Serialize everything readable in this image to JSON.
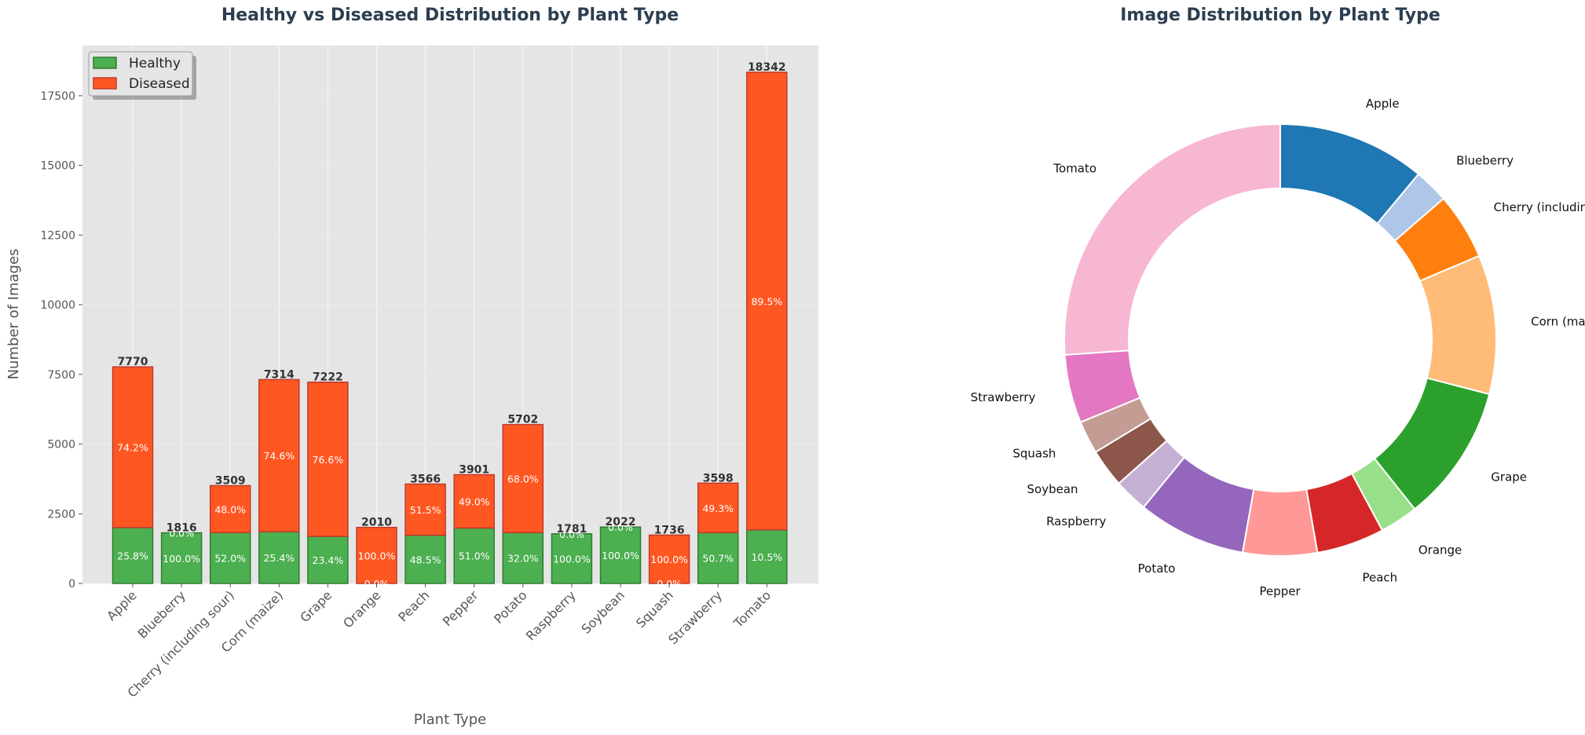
{
  "chart_data": [
    {
      "type": "bar",
      "stacked": true,
      "title": "Healthy vs Diseased Distribution by Plant Type",
      "xlabel": "Plant Type",
      "ylabel": "Number of Images",
      "ylim": [
        0,
        19300
      ],
      "yticks": [
        0,
        2500,
        5000,
        7500,
        10000,
        12500,
        15000,
        17500
      ],
      "grid": true,
      "legend_position": "upper-left",
      "categories": [
        "Apple",
        "Blueberry",
        "Cherry (including sour)",
        "Corn (maize)",
        "Grape",
        "Orange",
        "Peach",
        "Pepper",
        "Potato",
        "Raspberry",
        "Soybean",
        "Squash",
        "Strawberry",
        "Tomato"
      ],
      "series": [
        {
          "name": "Healthy",
          "color": "#4caf50",
          "values": [
            2005,
            1816,
            1825,
            1858,
            1690,
            0,
            1730,
            1989,
            1824,
            1781,
            2022,
            0,
            1824,
            1926
          ]
        },
        {
          "name": "Diseased",
          "color": "#ff5722",
          "values": [
            5765,
            0,
            1684,
            5456,
            5532,
            2010,
            1836,
            1912,
            3878,
            0,
            0,
            1736,
            1774,
            16416
          ]
        }
      ],
      "totals": [
        7770,
        1816,
        3509,
        7314,
        7222,
        2010,
        3566,
        3901,
        5702,
        1781,
        2022,
        1736,
        3598,
        18342
      ],
      "healthy_pct_labels": [
        "25.8%",
        "100.0%",
        "52.0%",
        "25.4%",
        "23.4%",
        "0.0%",
        "48.5%",
        "51.0%",
        "32.0%",
        "100.0%",
        "100.0%",
        "0.0%",
        "50.7%",
        "10.5%"
      ],
      "diseased_pct_labels": [
        "74.2%",
        "0.0%",
        "48.0%",
        "74.6%",
        "76.6%",
        "100.0%",
        "51.5%",
        "49.0%",
        "68.0%",
        "0.0%",
        "0.0%",
        "100.0%",
        "49.3%",
        "89.5%"
      ]
    },
    {
      "type": "pie",
      "donut": true,
      "title": "Image Distribution by Plant Type",
      "labels": [
        "Apple",
        "Blueberry",
        "Cherry (including sour)",
        "Corn (maize)",
        "Grape",
        "Orange",
        "Peach",
        "Pepper",
        "Potato",
        "Raspberry",
        "Soybean",
        "Squash",
        "Strawberry",
        "Tomato"
      ],
      "values": [
        7770,
        1816,
        3509,
        7314,
        7222,
        2010,
        3566,
        3901,
        5702,
        1781,
        2022,
        1736,
        3598,
        18342
      ],
      "colors": [
        "#1f77b4",
        "#aec7e8",
        "#ff7f0e",
        "#ffbb78",
        "#2ca02c",
        "#98df8a",
        "#d62728",
        "#ff9896",
        "#9467bd",
        "#c5b0d5",
        "#8c564b",
        "#c49c94",
        "#e377c2",
        "#f7b6d2"
      ]
    }
  ]
}
